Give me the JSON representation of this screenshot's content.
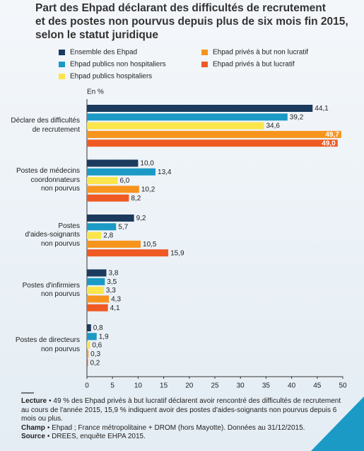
{
  "chart_data": {
    "type": "bar",
    "orientation": "horizontal",
    "title": [
      "Part des Ehpad déclarant des difficultés de recrutement",
      "et des postes non pourvus depuis plus de six mois fin 2015,",
      "selon le statut juridique"
    ],
    "x_label": "En %",
    "categories": [
      "Déclare des difficultés\nde recrutement",
      "Postes de médecins\ncoordonnateurs\nnon pourvus",
      "Postes\nd'aides-soignants\nnon pourvus",
      "Postes d'infirmiers\nnon pourvus",
      "Postes de directeurs\nnon pourvus"
    ],
    "series": [
      {
        "name": "Ensemble des Ehpad",
        "color": "#1b3a5e",
        "values": [
          44.1,
          10.0,
          9.2,
          3.8,
          0.8
        ],
        "value_labels": [
          "44,1",
          "10,0",
          "9,2",
          "3,8",
          "0,8"
        ]
      },
      {
        "name": "Ehpad publics non hospitaliers",
        "color": "#1b9ac6",
        "values": [
          39.2,
          13.4,
          5.7,
          3.5,
          1.9
        ],
        "value_labels": [
          "39,2",
          "13,4",
          "5,7",
          "3,5",
          "1,9"
        ]
      },
      {
        "name": "Ehpad publics hospitaliers",
        "color": "#fbe54c",
        "values": [
          34.6,
          6.0,
          2.8,
          3.3,
          0.6
        ],
        "value_labels": [
          "34,6",
          "6,0",
          "2,8",
          "3,3",
          "0,6"
        ]
      },
      {
        "name": "Ehpad privés à but non lucratif",
        "color": "#f7941e",
        "values": [
          49.7,
          10.2,
          10.5,
          4.3,
          0.3
        ],
        "value_labels": [
          "49,7",
          "10,2",
          "10,5",
          "4,3",
          "0,3"
        ]
      },
      {
        "name": "Ehpad privés à but lucratif",
        "color": "#ef5a24",
        "values": [
          49.0,
          8.2,
          15.9,
          4.1,
          0.2
        ],
        "value_labels": [
          "49,0",
          "8,2",
          "15,9",
          "4,1",
          "0,2"
        ]
      }
    ],
    "xlim": [
      0,
      50
    ],
    "xticks": [
      0,
      5,
      10,
      15,
      20,
      25,
      30,
      35,
      40,
      45,
      50
    ],
    "notes": [
      {
        "label": "Lecture",
        "text": "• 49 % des Ehpad privés à but lucratif déclarent avoir rencontré des difficultés de recrutement au cours de l'année 2015, 15,9 % indiquent avoir des postes d'aides-soignants non pourvus depuis 6 mois ou plus."
      },
      {
        "label": "Champ",
        "text": "• Ehpad ; France métropolitaine + DROM (hors Mayotte). Données au 31/12/2015."
      },
      {
        "label": "Source",
        "text": "• DREES, enquête EHPA 2015."
      }
    ]
  }
}
